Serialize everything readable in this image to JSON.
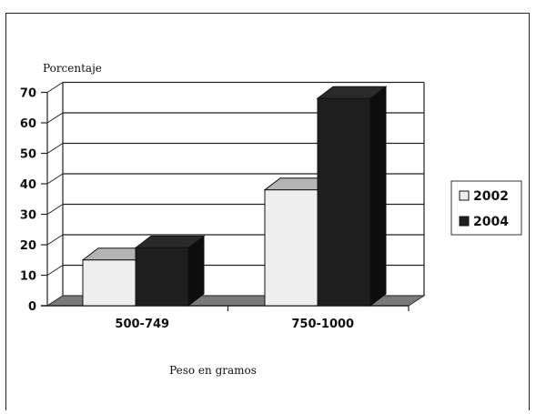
{
  "chart_data": {
    "type": "bar",
    "title": "",
    "ylabel": "Porcentaje",
    "xlabel": "Peso en gramos",
    "categories": [
      "500-749",
      "750-1000"
    ],
    "series": [
      {
        "name": "2002",
        "values": [
          15,
          38
        ]
      },
      {
        "name": "2004",
        "values": [
          19,
          68
        ]
      }
    ],
    "ylim": [
      0,
      70
    ],
    "yticks": [
      "0",
      "10",
      "20",
      "30",
      "40",
      "50",
      "60",
      "70"
    ],
    "grid": true,
    "legend_position": "right",
    "colors": {
      "2002": "#eeeeee",
      "2004": "#1e1e1e",
      "floor": "#7a7a7a"
    }
  }
}
